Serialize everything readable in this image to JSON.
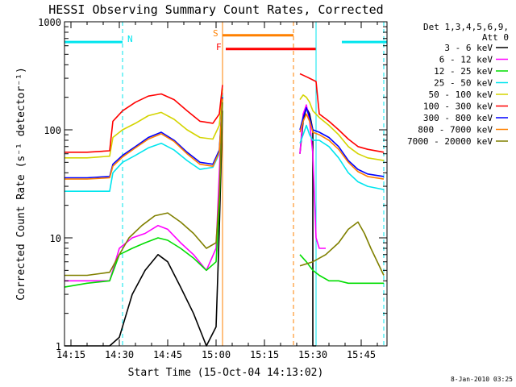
{
  "chart_data": {
    "type": "line",
    "title": "HESSI Observing Summary Count Rates, Corrected",
    "xlabel": "Start Time (15-Oct-04 14:13:02)",
    "ylabel": "Corrected Count Rate (s⁻¹ detector⁻¹)",
    "y_scale": "log",
    "ylim": [
      1,
      1000
    ],
    "xlim": [
      "14:13",
      "15:53"
    ],
    "x_ticks": [
      "14:15",
      "14:30",
      "14:45",
      "15:00",
      "15:15",
      "15:30",
      "15:45"
    ],
    "y_ticks": [
      "1",
      "10",
      "100",
      "1000"
    ],
    "legend_header": [
      "Det 1,3,4,5,6,9,",
      "Att 0"
    ],
    "legend_position": "right",
    "timestamp": "8-Jan-2010 03:25",
    "flag_labels": {
      "night": "N",
      "saa": "S",
      "flare": "F"
    },
    "flags": [
      {
        "label": "N",
        "color": "#00e5ee",
        "y": 650,
        "segments": [
          [
            "14:13",
            "14:31"
          ],
          [
            "15:39",
            "15:53"
          ]
        ]
      },
      {
        "label": "S",
        "color": "#ff8000",
        "y": 750,
        "segments": [
          [
            "15:02",
            "15:24"
          ]
        ]
      },
      {
        "label": "F",
        "color": "#ff0000",
        "y": 560,
        "segments": [
          [
            "15:03",
            "15:31"
          ]
        ]
      }
    ],
    "vlines": [
      {
        "t": "14:31",
        "color": "#00e5ee",
        "dashed": true
      },
      {
        "t": "15:52",
        "color": "#00e5ee",
        "dashed": true
      },
      {
        "t": "15:24",
        "color": "#ff8000",
        "dashed": true
      },
      {
        "t": "15:02",
        "color": "#ff8000",
        "dashed": false
      },
      {
        "t": "15:31",
        "color": "#00e5ee",
        "dashed": false
      }
    ],
    "gap": [
      "15:02",
      "15:26"
    ],
    "series": [
      {
        "name": "3 - 6 keV",
        "color": "#000000",
        "t": [
          "14:13",
          "14:20",
          "14:27",
          "14:30",
          "14:34",
          "14:38",
          "14:42",
          "14:45",
          "14:49",
          "14:53",
          "14:57",
          "15:00",
          "15:01",
          "15:02",
          "15:26",
          "15:27",
          "15:28",
          "15:29",
          "15:30",
          "15:30",
          "15:31"
        ],
        "v": [
          1,
          1,
          1,
          1.2,
          3,
          5,
          7,
          6,
          3.5,
          2,
          1,
          1.5,
          12,
          150,
          60,
          120,
          160,
          140,
          100,
          1,
          1
        ]
      },
      {
        "name": "6 - 12 keV",
        "color": "#ff00ff",
        "t": [
          "14:13",
          "14:20",
          "14:27",
          "14:30",
          "14:34",
          "14:38",
          "14:42",
          "14:45",
          "14:49",
          "14:53",
          "14:57",
          "15:00",
          "15:01",
          "15:02",
          "15:26",
          "15:27",
          "15:28",
          "15:29",
          "15:30",
          "15:31",
          "15:32",
          "15:34"
        ],
        "v": [
          4,
          4,
          4,
          8,
          10,
          11,
          13,
          12,
          9,
          7,
          5,
          8,
          40,
          220,
          60,
          140,
          170,
          120,
          60,
          10,
          8,
          8
        ]
      },
      {
        "name": "12 - 25 keV",
        "color": "#00dd00",
        "t": [
          "14:13",
          "14:20",
          "14:27",
          "14:30",
          "14:34",
          "14:38",
          "14:42",
          "14:45",
          "14:49",
          "14:53",
          "14:57",
          "15:00",
          "15:01",
          "15:02",
          "15:26",
          "15:28",
          "15:30",
          "15:32",
          "15:35",
          "15:38",
          "15:41",
          "15:44",
          "15:47",
          "15:52"
        ],
        "v": [
          3.5,
          3.8,
          4,
          7,
          8,
          9,
          10,
          9.5,
          8,
          6.5,
          5,
          6,
          20,
          200,
          7,
          6,
          5,
          4.5,
          4,
          4,
          3.8,
          3.8,
          3.8,
          3.8
        ]
      },
      {
        "name": "25 - 50 keV",
        "color": "#00e5ee",
        "t": [
          "14:13",
          "14:20",
          "14:27",
          "14:28",
          "14:31",
          "14:35",
          "14:39",
          "14:43",
          "14:47",
          "14:51",
          "14:55",
          "14:59",
          "15:01",
          "15:02",
          "15:26",
          "15:27",
          "15:28",
          "15:29",
          "15:30",
          "15:32",
          "15:35",
          "15:38",
          "15:41",
          "15:44",
          "15:47",
          "15:52"
        ],
        "v": [
          27,
          27,
          27,
          40,
          50,
          58,
          68,
          75,
          65,
          52,
          43,
          45,
          60,
          210,
          75,
          90,
          110,
          90,
          80,
          80,
          70,
          55,
          40,
          33,
          30,
          28
        ]
      },
      {
        "name": "50 - 100 keV",
        "color": "#d4d400",
        "t": [
          "14:13",
          "14:20",
          "14:27",
          "14:28",
          "14:31",
          "14:35",
          "14:39",
          "14:43",
          "14:47",
          "14:51",
          "14:55",
          "14:59",
          "15:01",
          "15:02",
          "15:26",
          "15:27",
          "15:28",
          "15:29",
          "15:30",
          "15:32",
          "15:35",
          "15:38",
          "15:41",
          "15:44",
          "15:47",
          "15:52"
        ],
        "v": [
          55,
          55,
          57,
          85,
          100,
          115,
          135,
          145,
          125,
          100,
          85,
          82,
          110,
          240,
          190,
          210,
          200,
          180,
          150,
          130,
          110,
          90,
          70,
          60,
          55,
          52
        ]
      },
      {
        "name": "100 - 300 keV",
        "color": "#ff0000",
        "t": [
          "14:13",
          "14:20",
          "14:27",
          "14:28",
          "14:31",
          "14:35",
          "14:39",
          "14:43",
          "14:47",
          "14:51",
          "14:55",
          "14:59",
          "15:01",
          "15:02",
          "15:26",
          "15:27",
          "15:29",
          "15:31",
          "15:32",
          "15:35",
          "15:38",
          "15:41",
          "15:44",
          "15:47",
          "15:52"
        ],
        "v": [
          62,
          62,
          64,
          120,
          150,
          180,
          205,
          215,
          190,
          150,
          120,
          115,
          140,
          260,
          330,
          320,
          300,
          280,
          140,
          120,
          100,
          82,
          70,
          66,
          62
        ]
      },
      {
        "name": "300 - 800 keV",
        "color": "#0000ff",
        "t": [
          "14:13",
          "14:20",
          "14:27",
          "14:28",
          "14:31",
          "14:35",
          "14:39",
          "14:43",
          "14:47",
          "14:51",
          "14:55",
          "14:59",
          "15:01",
          "15:02",
          "15:26",
          "15:27",
          "15:28",
          "15:29",
          "15:30",
          "15:32",
          "15:35",
          "15:38",
          "15:41",
          "15:44",
          "15:47",
          "15:52"
        ],
        "v": [
          36,
          36,
          37,
          48,
          58,
          70,
          85,
          95,
          80,
          62,
          50,
          48,
          65,
          200,
          100,
          130,
          160,
          130,
          100,
          95,
          85,
          70,
          52,
          43,
          39,
          37
        ]
      },
      {
        "name": "800 - 7000 keV",
        "color": "#ff8000",
        "t": [
          "14:13",
          "14:20",
          "14:27",
          "14:28",
          "14:31",
          "14:35",
          "14:39",
          "14:43",
          "14:47",
          "14:51",
          "14:55",
          "14:59",
          "15:01",
          "15:02",
          "15:26",
          "15:27",
          "15:28",
          "15:29",
          "15:30",
          "15:32",
          "15:35",
          "15:38",
          "15:41",
          "15:44",
          "15:47",
          "15:52"
        ],
        "v": [
          35,
          35,
          36,
          46,
          56,
          68,
          82,
          92,
          78,
          60,
          48,
          46,
          62,
          195,
          95,
          120,
          140,
          120,
          95,
          90,
          80,
          66,
          50,
          41,
          37,
          35
        ]
      },
      {
        "name": "7000 - 20000 keV",
        "color": "#808000",
        "t": [
          "14:13",
          "14:20",
          "14:27",
          "14:30",
          "14:33",
          "14:37",
          "14:41",
          "14:45",
          "14:49",
          "14:53",
          "14:57",
          "15:00",
          "15:01",
          "15:02",
          "15:26",
          "15:30",
          "15:34",
          "15:38",
          "15:41",
          "15:44",
          "15:46",
          "15:48",
          "15:52"
        ],
        "v": [
          4.5,
          4.5,
          4.8,
          7,
          10,
          13,
          16,
          17,
          14,
          11,
          8,
          9,
          25,
          180,
          5.5,
          6,
          7,
          9,
          12,
          14,
          11,
          8,
          4.5
        ]
      }
    ]
  }
}
